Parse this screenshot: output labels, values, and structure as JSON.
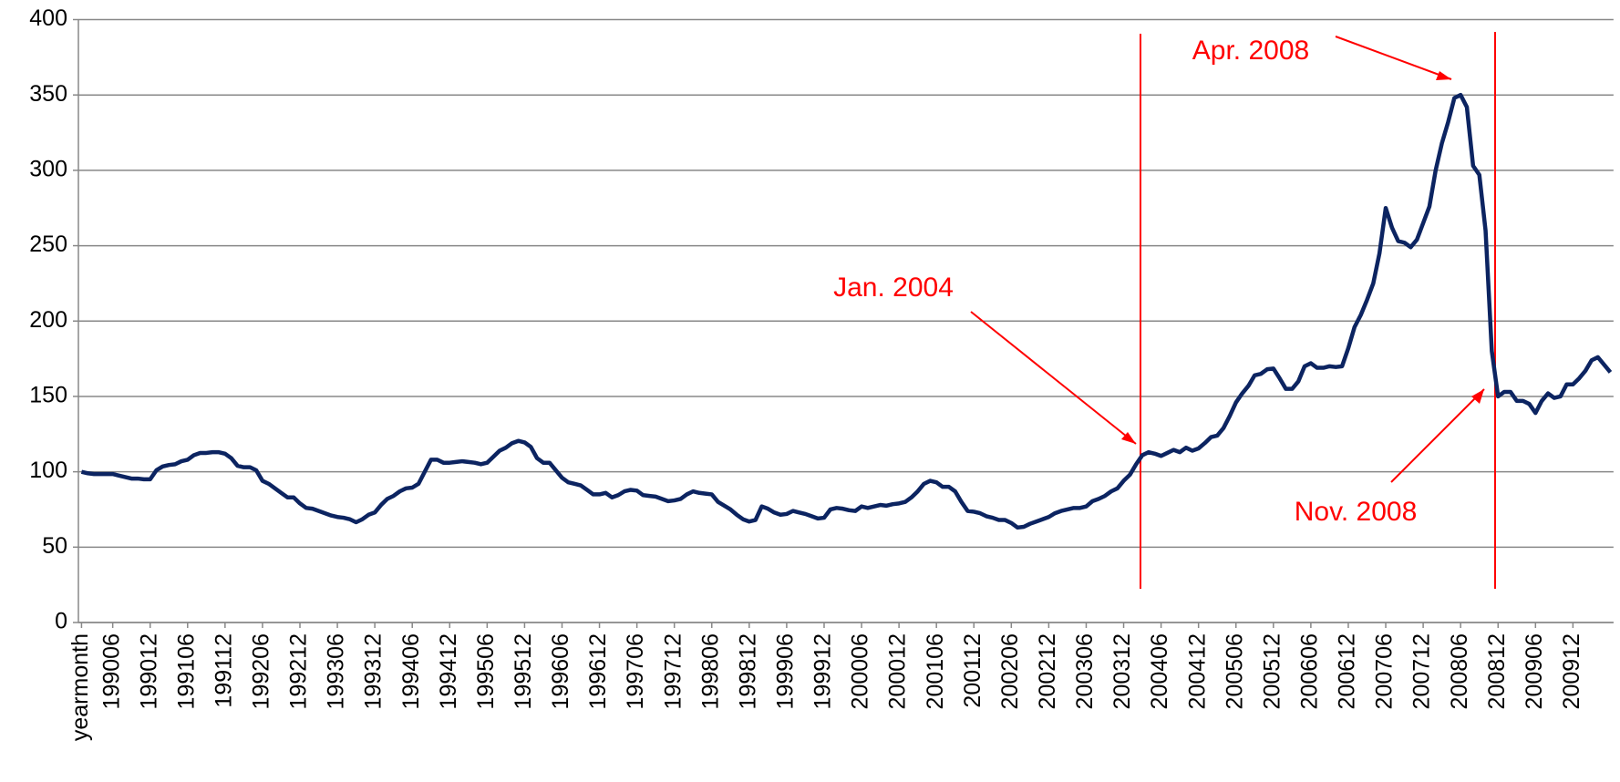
{
  "chart_data": {
    "type": "line",
    "categories": [
      "yearmonth",
      null,
      null,
      null,
      null,
      "199006",
      null,
      null,
      null,
      null,
      null,
      "199012",
      null,
      null,
      null,
      null,
      null,
      "199106",
      null,
      null,
      null,
      null,
      null,
      "199112",
      null,
      null,
      null,
      null,
      null,
      "199206",
      null,
      null,
      null,
      null,
      null,
      "199212",
      null,
      null,
      null,
      null,
      null,
      "199306",
      null,
      null,
      null,
      null,
      null,
      "199312",
      null,
      null,
      null,
      null,
      null,
      "199406",
      null,
      null,
      null,
      null,
      null,
      "199412",
      null,
      null,
      null,
      null,
      null,
      "199506",
      null,
      null,
      null,
      null,
      null,
      "199512",
      null,
      null,
      null,
      null,
      null,
      "199606",
      null,
      null,
      null,
      null,
      null,
      "199612",
      null,
      null,
      null,
      null,
      null,
      "199706",
      null,
      null,
      null,
      null,
      null,
      "199712",
      null,
      null,
      null,
      null,
      null,
      "199806",
      null,
      null,
      null,
      null,
      null,
      "199812",
      null,
      null,
      null,
      null,
      null,
      "199906",
      null,
      null,
      null,
      null,
      null,
      "199912",
      null,
      null,
      null,
      null,
      null,
      "200006",
      null,
      null,
      null,
      null,
      null,
      "200012",
      null,
      null,
      null,
      null,
      null,
      "200106",
      null,
      null,
      null,
      null,
      null,
      "200112",
      null,
      null,
      null,
      null,
      null,
      "200206",
      null,
      null,
      null,
      null,
      null,
      "200212",
      null,
      null,
      null,
      null,
      null,
      "200306",
      null,
      null,
      null,
      null,
      null,
      "200312",
      null,
      null,
      null,
      null,
      null,
      "200406",
      null,
      null,
      null,
      null,
      null,
      "200412",
      null,
      null,
      null,
      null,
      null,
      "200506",
      null,
      null,
      null,
      null,
      null,
      "200512",
      null,
      null,
      null,
      null,
      null,
      "200606",
      null,
      null,
      null,
      null,
      null,
      "200612",
      null,
      null,
      null,
      null,
      null,
      "200706",
      null,
      null,
      null,
      null,
      null,
      "200712",
      null,
      null,
      null,
      null,
      null,
      "200806",
      null,
      null,
      null,
      null,
      null,
      "200812",
      null,
      null,
      null,
      null,
      null,
      "200906",
      null,
      null,
      null,
      null,
      null,
      "200912",
      null,
      null,
      null,
      null,
      null,
      null
    ],
    "values": [
      100,
      99,
      98.5,
      98.5,
      98.5,
      98.5,
      97.5,
      96.5,
      95.5,
      95.5,
      95,
      95,
      101,
      103.5,
      104.5,
      105,
      107,
      108,
      111,
      112.5,
      112.5,
      113,
      113,
      112,
      109,
      104,
      103,
      103,
      101,
      94,
      92,
      89,
      86,
      83,
      83,
      79,
      76,
      75.5,
      74,
      72.5,
      71,
      70,
      69.5,
      68.5,
      66.5,
      68.5,
      71.5,
      73,
      78,
      82,
      84,
      87,
      89,
      89.5,
      92,
      100,
      108,
      108,
      106,
      106,
      106.5,
      107,
      106.5,
      106,
      105,
      106,
      110,
      114,
      116,
      119,
      120.5,
      119.5,
      116.5,
      109,
      106,
      106,
      101,
      96,
      93,
      92,
      91,
      88,
      85,
      85,
      86,
      83,
      84.5,
      87,
      88,
      87.5,
      84.5,
      84,
      83.5,
      82,
      80.5,
      81,
      82,
      85,
      87,
      86,
      85.5,
      85,
      80,
      77.5,
      75,
      71.5,
      68.5,
      67,
      68,
      77,
      75.5,
      73,
      71.5,
      72,
      74,
      73,
      72,
      70.5,
      69,
      69.5,
      75,
      76,
      75.5,
      74.5,
      74,
      77,
      76,
      77,
      78,
      77.5,
      78.5,
      79,
      80,
      83,
      87,
      92,
      94,
      93,
      90,
      90,
      87,
      80,
      74,
      73.5,
      72.5,
      70.5,
      69.5,
      68,
      68,
      66,
      63,
      63.5,
      65.5,
      67,
      68.5,
      70,
      72.5,
      74,
      75,
      76,
      76,
      77,
      80.5,
      82,
      84,
      87,
      89,
      94,
      98,
      105,
      111,
      113,
      112,
      110.5,
      112.5,
      114.5,
      113,
      116,
      114,
      115.5,
      119,
      123,
      124,
      129,
      137,
      146,
      152,
      157,
      164,
      165,
      168,
      168.5,
      162,
      155,
      155,
      160,
      170,
      172,
      169,
      169,
      170,
      169.5,
      170,
      182,
      196,
      204,
      214,
      225,
      245,
      275,
      262,
      253,
      252,
      249,
      254,
      265,
      276,
      300,
      318,
      332,
      348,
      350,
      342,
      303,
      297,
      260,
      180,
      150,
      153,
      153,
      147,
      147,
      145,
      139,
      147,
      152,
      149,
      150,
      158,
      158,
      162,
      167,
      174,
      176,
      171,
      166
    ],
    "color": "#0c2461",
    "ylim": [
      0,
      400
    ],
    "yticks": [
      0,
      50,
      100,
      150,
      200,
      250,
      300,
      350,
      400
    ],
    "grid": true,
    "annotations": [
      {
        "text": "Jan. 2004"
      },
      {
        "text": "Apr. 2008"
      },
      {
        "text": "Nov. 2008"
      }
    ]
  }
}
